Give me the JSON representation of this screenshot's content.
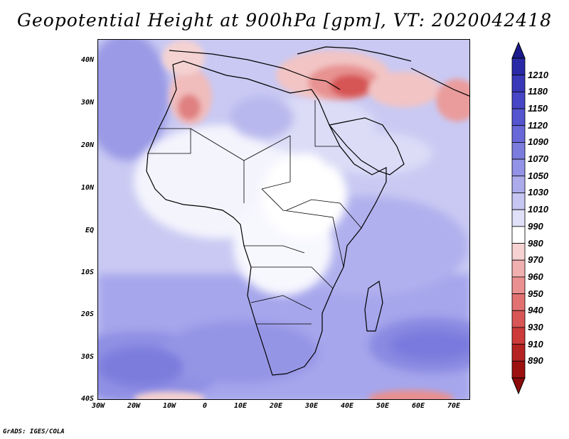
{
  "title": "Geopotential Height at 900hPa [gpm], VT: 2020042418",
  "footer": "GrADS: IGES/COLA",
  "map": {
    "variable": "Geopotential Height",
    "level": "900hPa",
    "units": "gpm",
    "valid_time": "2020042418",
    "lat_range": [
      -40,
      45
    ],
    "lon_range": [
      -30,
      75
    ],
    "lat_ticks": [
      "40N",
      "30N",
      "20N",
      "10N",
      "EQ",
      "10S",
      "20S",
      "30S",
      "40S"
    ],
    "lon_ticks": [
      "30W",
      "20W",
      "10W",
      "0",
      "10E",
      "20E",
      "30E",
      "40E",
      "50E",
      "60E",
      "70E"
    ]
  },
  "colorbar": {
    "labels": [
      "1210",
      "1180",
      "1150",
      "1120",
      "1090",
      "1070",
      "1050",
      "1030",
      "1010",
      "990",
      "980",
      "970",
      "960",
      "950",
      "940",
      "930",
      "910",
      "890"
    ],
    "colors": [
      "#2a2aa6",
      "#3838b8",
      "#4646c6",
      "#5555d0",
      "#6868d8",
      "#7c7cde",
      "#9292e6",
      "#ababec",
      "#c6c6f2",
      "#e0e0f8",
      "#ffffff",
      "#f6d2d2",
      "#f0b0b0",
      "#ea9090",
      "#e27272",
      "#d85656",
      "#cc3a3a",
      "#b42222",
      "#9c1010"
    ]
  }
}
